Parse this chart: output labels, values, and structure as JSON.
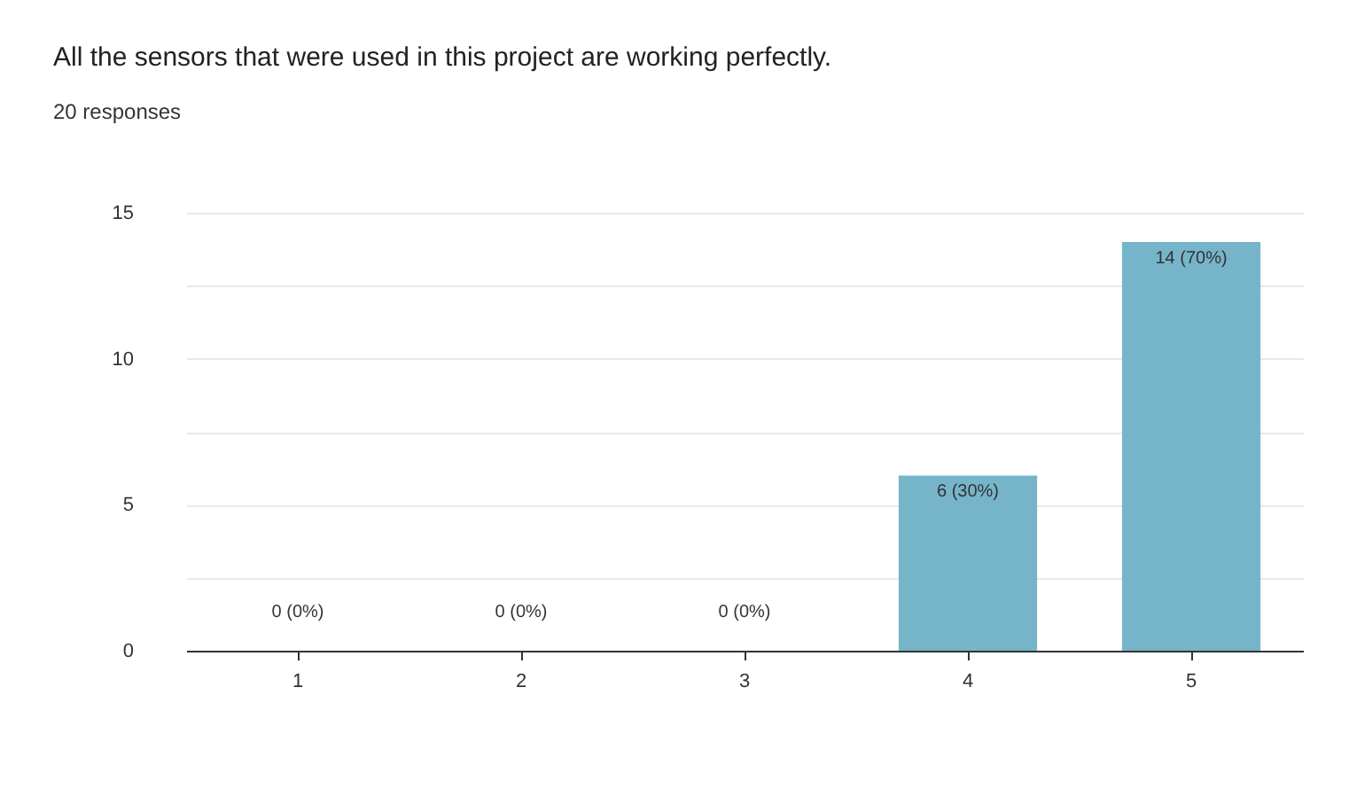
{
  "chart_data": {
    "type": "bar",
    "title": "All the sensors that were used in this project are working perfectly.",
    "subtitle": "20 responses",
    "categories": [
      "1",
      "2",
      "3",
      "4",
      "5"
    ],
    "values": [
      0,
      0,
      0,
      6,
      14
    ],
    "value_labels": [
      "0 (0%)",
      "0 (0%)",
      "0 (0%)",
      "6 (30%)",
      "14 (70%)"
    ],
    "color": "#76b5c9",
    "ylim": [
      0,
      15
    ],
    "yticks": [
      0,
      {
        "value": 2.5,
        "label": null
      },
      5,
      {
        "value": 7.5,
        "label": null
      },
      10,
      {
        "value": 12.5,
        "label": null
      },
      15
    ],
    "grid": "y"
  }
}
